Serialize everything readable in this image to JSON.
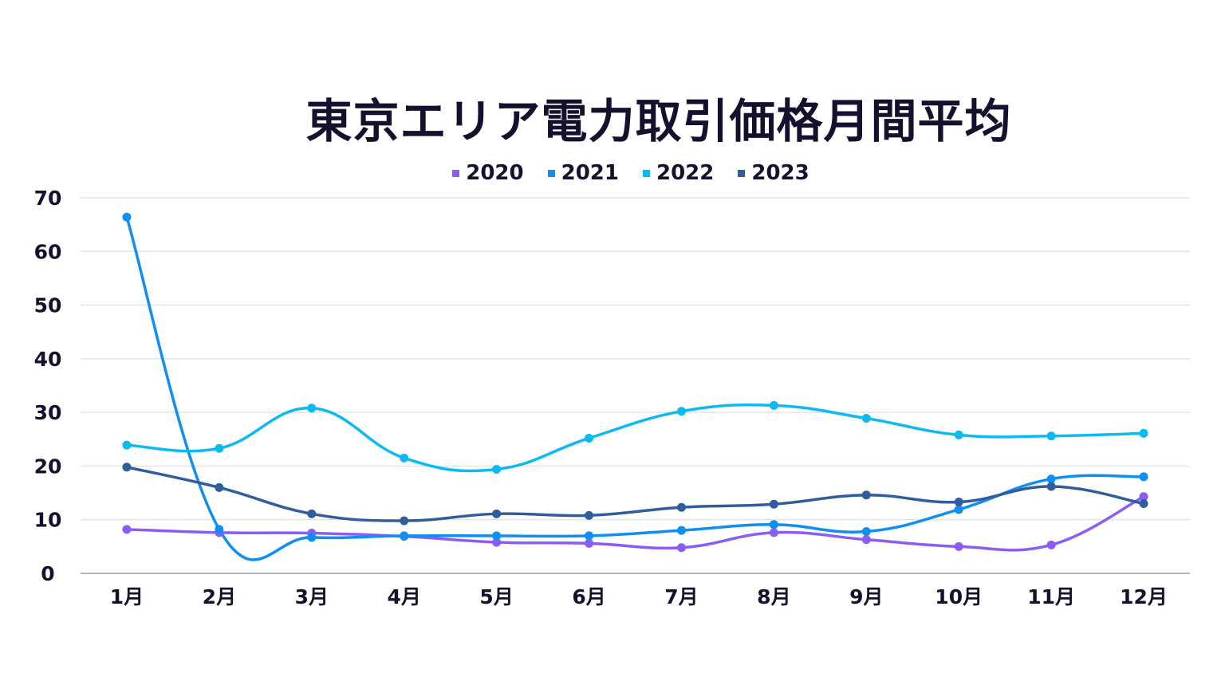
{
  "chart_data": {
    "type": "line",
    "title": "東京エリア電力取引価格月間平均",
    "categories": [
      "1月",
      "2月",
      "3月",
      "4月",
      "5月",
      "6月",
      "7月",
      "8月",
      "9月",
      "10月",
      "11月",
      "12月"
    ],
    "ylim": [
      0,
      70
    ],
    "yticks": [
      0,
      10,
      20,
      30,
      40,
      50,
      60,
      70
    ],
    "grid": true,
    "legend_position": "top-center",
    "series": [
      {
        "name": "2020",
        "color": "#8b5cf6",
        "values": [
          8.2,
          7.6,
          7.5,
          6.9,
          5.8,
          5.6,
          4.8,
          7.6,
          6.3,
          5.0,
          5.3,
          14.3
        ]
      },
      {
        "name": "2021",
        "color": "#0f8ff2",
        "values": [
          66.4,
          8.2,
          6.7,
          7.0,
          7.0,
          7.0,
          8.0,
          9.1,
          7.8,
          11.9,
          17.6,
          18.0
        ]
      },
      {
        "name": "2022",
        "color": "#0cbaf2",
        "values": [
          23.9,
          23.3,
          30.8,
          21.5,
          19.4,
          25.2,
          30.2,
          31.3,
          28.9,
          25.8,
          25.6,
          26.1
        ]
      },
      {
        "name": "2023",
        "color": "#2f5d9e",
        "values": [
          19.8,
          16.0,
          11.1,
          9.8,
          11.1,
          10.8,
          12.3,
          12.9,
          14.6,
          13.3,
          16.2,
          13.0
        ]
      }
    ]
  }
}
